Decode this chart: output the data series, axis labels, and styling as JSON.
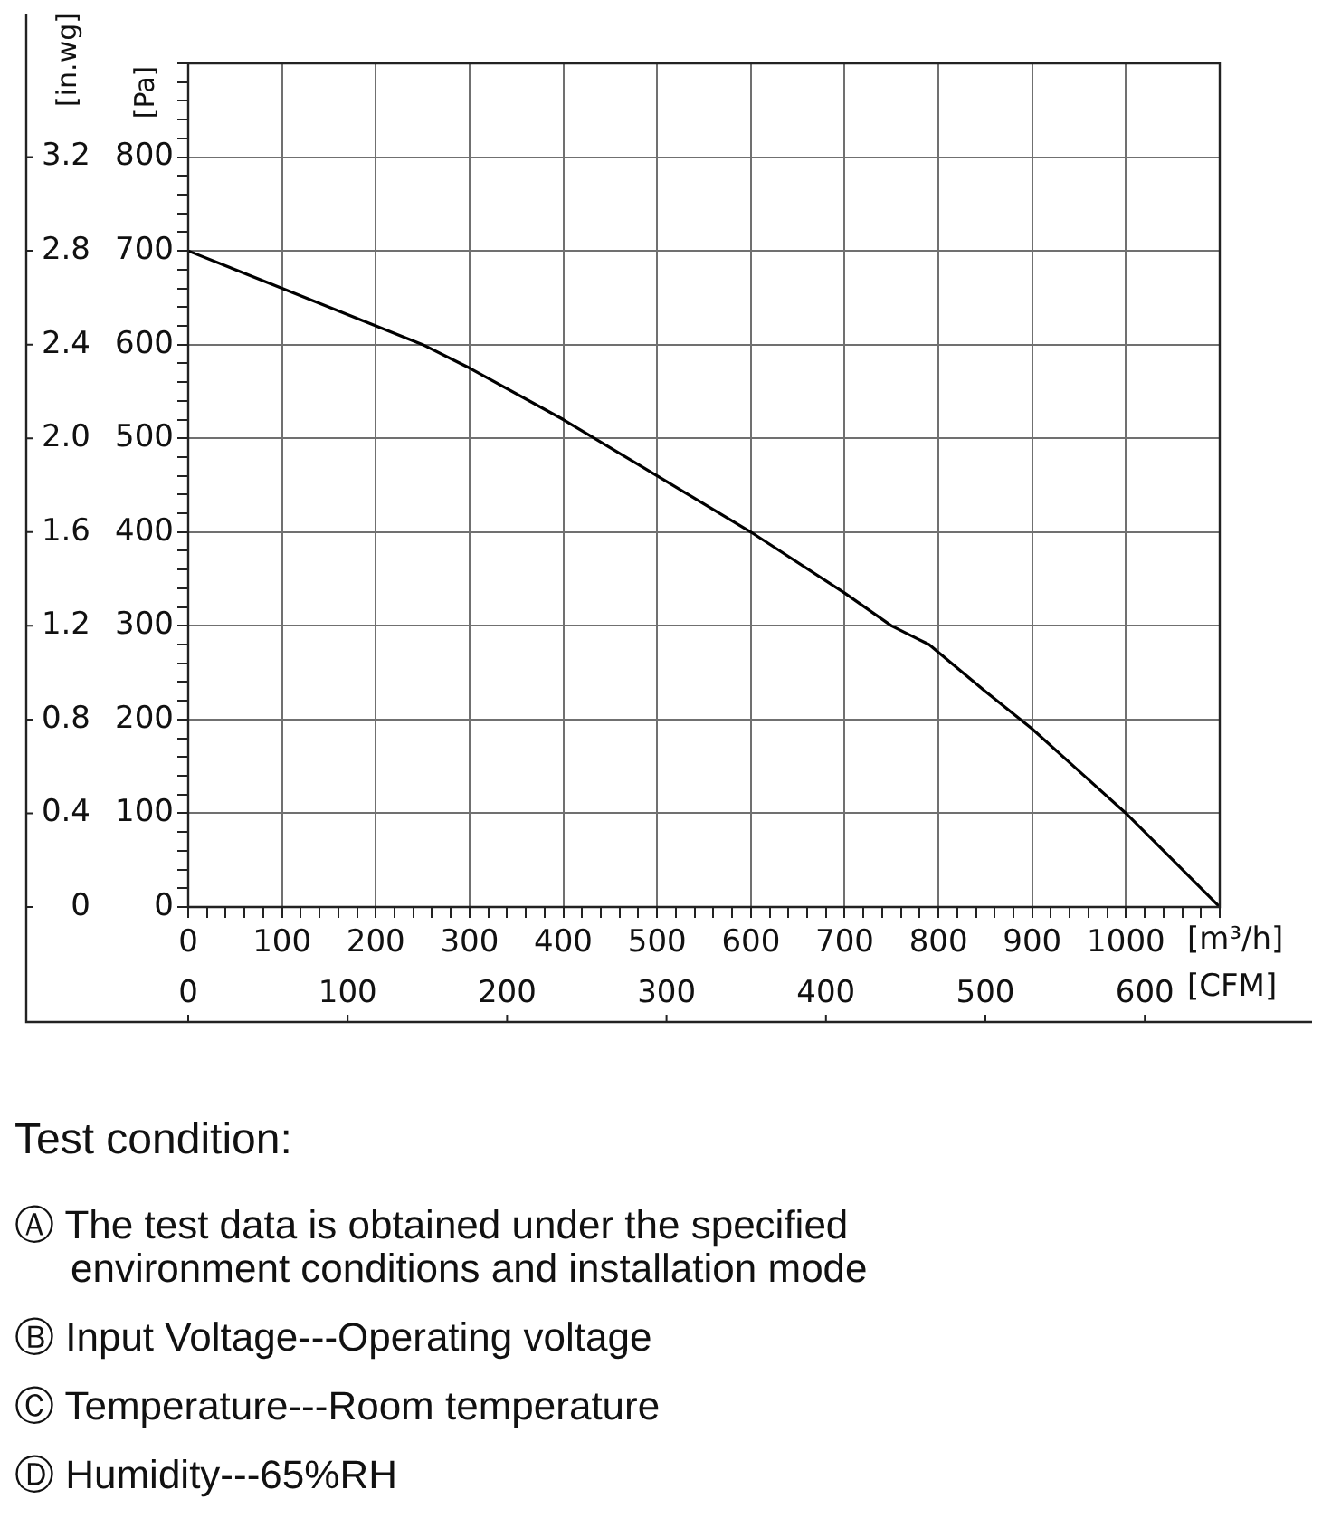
{
  "chart_data": {
    "type": "line",
    "x": [
      0,
      100,
      200,
      250,
      300,
      400,
      500,
      600,
      700,
      750,
      790,
      850,
      900,
      950,
      1000,
      1050,
      1100
    ],
    "values": [
      700,
      660,
      620,
      600,
      575,
      520,
      460,
      400,
      335,
      300,
      280,
      230,
      190,
      145,
      100,
      50,
      0
    ],
    "color": "#000000",
    "xlabel": "[m³/h]",
    "x2label": "[CFM]",
    "ylabel": "[Pa]",
    "y2label": "[in.wg]",
    "xlim": [
      0,
      1100
    ],
    "xticks": [
      0,
      {
        "value": 20,
        "label": null
      },
      {
        "value": 40,
        "label": null
      },
      {
        "value": 60,
        "label": null
      },
      {
        "value": 80,
        "label": null
      },
      100,
      {
        "value": 120,
        "label": null
      },
      {
        "value": 140,
        "label": null
      },
      {
        "value": 160,
        "label": null
      },
      {
        "value": 180,
        "label": null
      },
      200,
      {
        "value": 220,
        "label": null
      },
      {
        "value": 240,
        "label": null
      },
      {
        "value": 260,
        "label": null
      },
      {
        "value": 280,
        "label": null
      },
      300,
      {
        "value": 320,
        "label": null
      },
      {
        "value": 340,
        "label": null
      },
      {
        "value": 360,
        "label": null
      },
      {
        "value": 380,
        "label": null
      },
      400,
      {
        "value": 420,
        "label": null
      },
      {
        "value": 440,
        "label": null
      },
      {
        "value": 460,
        "label": null
      },
      {
        "value": 480,
        "label": null
      },
      500,
      {
        "value": 520,
        "label": null
      },
      {
        "value": 540,
        "label": null
      },
      {
        "value": 560,
        "label": null
      },
      {
        "value": 580,
        "label": null
      },
      600,
      {
        "value": 620,
        "label": null
      },
      {
        "value": 640,
        "label": null
      },
      {
        "value": 660,
        "label": null
      },
      {
        "value": 680,
        "label": null
      },
      700,
      {
        "value": 720,
        "label": null
      },
      {
        "value": 740,
        "label": null
      },
      {
        "value": 760,
        "label": null
      },
      {
        "value": 780,
        "label": null
      },
      800,
      {
        "value": 820,
        "label": null
      },
      {
        "value": 840,
        "label": null
      },
      {
        "value": 860,
        "label": null
      },
      {
        "value": 880,
        "label": null
      },
      900,
      {
        "value": 920,
        "label": null
      },
      {
        "value": 940,
        "label": null
      },
      {
        "value": 960,
        "label": null
      },
      {
        "value": 980,
        "label": null
      },
      1000,
      {
        "value": 1020,
        "label": null
      },
      {
        "value": 1040,
        "label": null
      },
      {
        "value": 1060,
        "label": null
      },
      {
        "value": 1080,
        "label": null
      },
      {
        "value": 1100,
        "label": null
      }
    ],
    "ylim": [
      0,
      900
    ],
    "yticks": [
      0,
      {
        "value": 20,
        "label": null
      },
      {
        "value": 40,
        "label": null
      },
      {
        "value": 60,
        "label": null
      },
      {
        "value": 80,
        "label": null
      },
      100,
      {
        "value": 120,
        "label": null
      },
      {
        "value": 140,
        "label": null
      },
      {
        "value": 160,
        "label": null
      },
      {
        "value": 180,
        "label": null
      },
      200,
      {
        "value": 220,
        "label": null
      },
      {
        "value": 240,
        "label": null
      },
      {
        "value": 260,
        "label": null
      },
      {
        "value": 280,
        "label": null
      },
      300,
      {
        "value": 320,
        "label": null
      },
      {
        "value": 340,
        "label": null
      },
      {
        "value": 360,
        "label": null
      },
      {
        "value": 380,
        "label": null
      },
      400,
      {
        "value": 420,
        "label": null
      },
      {
        "value": 440,
        "label": null
      },
      {
        "value": 460,
        "label": null
      },
      {
        "value": 480,
        "label": null
      },
      500,
      {
        "value": 520,
        "label": null
      },
      {
        "value": 540,
        "label": null
      },
      {
        "value": 560,
        "label": null
      },
      {
        "value": 580,
        "label": null
      },
      600,
      {
        "value": 620,
        "label": null
      },
      {
        "value": 640,
        "label": null
      },
      {
        "value": 660,
        "label": null
      },
      {
        "value": 680,
        "label": null
      },
      700,
      {
        "value": 720,
        "label": null
      },
      {
        "value": 740,
        "label": null
      },
      {
        "value": 760,
        "label": null
      },
      {
        "value": 780,
        "label": null
      },
      800,
      {
        "value": 820,
        "label": null
      },
      {
        "value": 840,
        "label": null
      },
      {
        "value": 860,
        "label": null
      },
      {
        "value": 880,
        "label": null
      },
      {
        "value": 900,
        "label": null
      }
    ],
    "x2lim": [
      0,
      647
    ],
    "x2ticks": [
      0,
      100,
      200,
      300,
      400,
      500,
      600
    ],
    "y2lim": [
      0,
      3.6
    ],
    "y2ticks": [
      0,
      0.4,
      0.8,
      1.2,
      1.6,
      {
        "value": 2,
        "label": "2.0"
      },
      2.4,
      2.8,
      3.2
    ],
    "grid": true,
    "annotations": [
      "Test condition:",
      "Ⓐ The test data is obtained under the specified environment conditions and installation mode",
      "Ⓑ Input Voltage---Operating voltage",
      "Ⓒ Temperature---Room temperature",
      "Ⓓ Humidity---65%RH"
    ]
  }
}
